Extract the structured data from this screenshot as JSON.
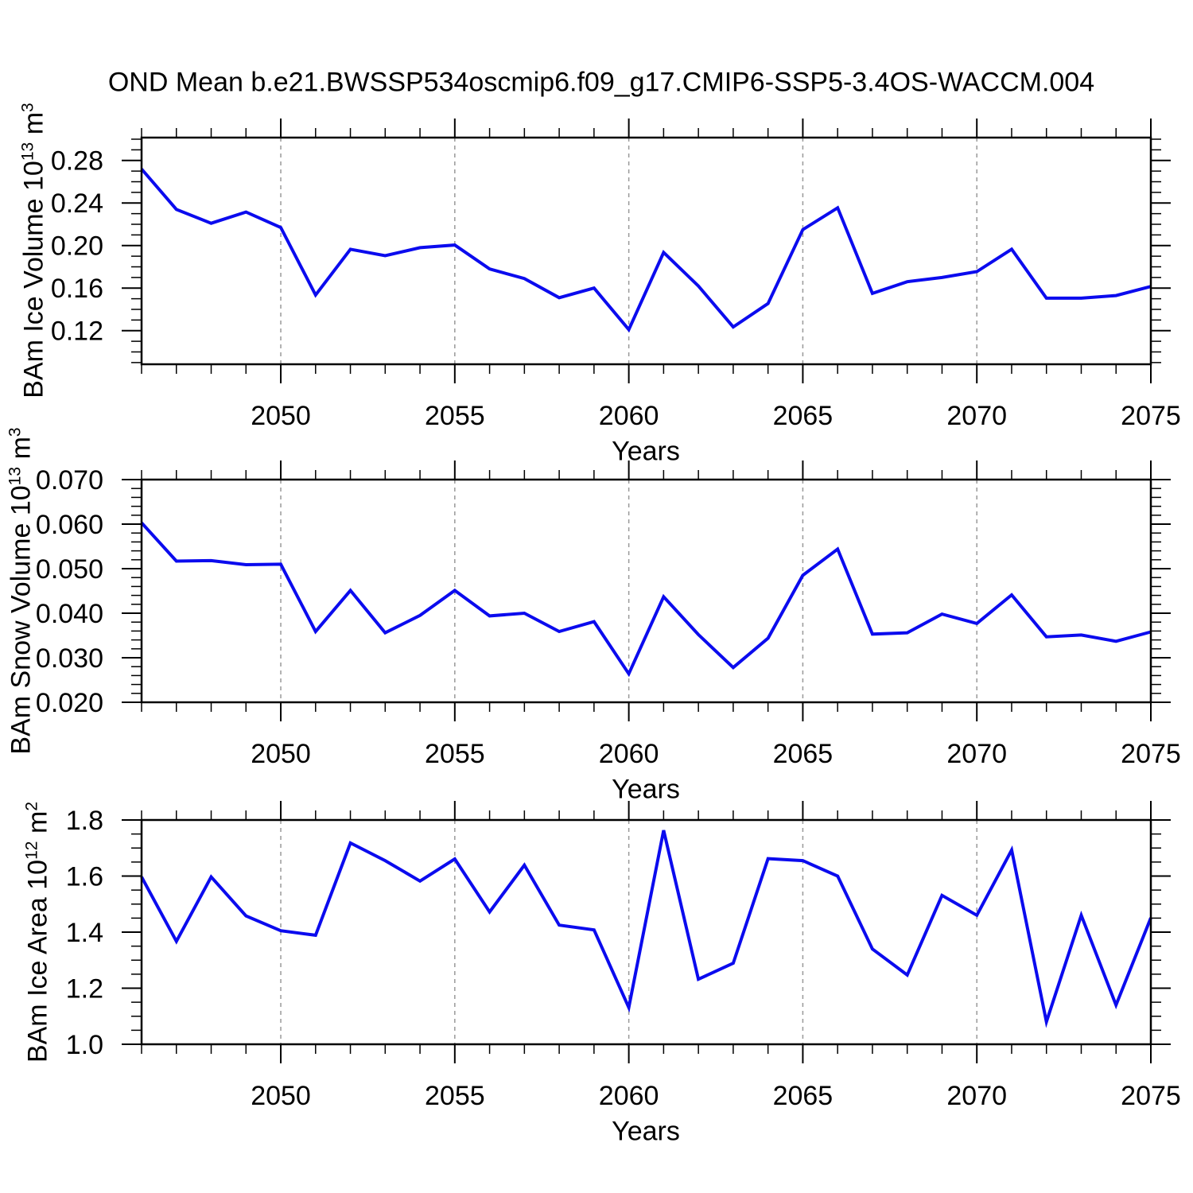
{
  "page": {
    "title": "OND Mean b.e21.BWSSP534oscmip6.f09_g17.CMIP6-SSP5-3.4OS-WACCM.004",
    "background": "#FFFFFF"
  },
  "axis": {
    "xlabel": "Years",
    "text_color": "#000000",
    "axis_color": "#000000",
    "grid_color": "#999999",
    "line_color": "#0B0BEE"
  },
  "chart_data": [
    {
      "type": "line",
      "name": "bam-ice-volume",
      "ylabel_text": "BAm Ice Volume 10^13 m^3",
      "ylabel_parts": [
        [
          "BAm Ice Volume 10",
          0
        ],
        [
          "13",
          1
        ],
        [
          " m",
          0
        ],
        [
          "3",
          1
        ]
      ],
      "xlabel": "Years",
      "legend": "none",
      "grid": "vertical-dashed",
      "xlim": [
        2046,
        2075
      ],
      "ylim": [
        0.0884,
        0.3015
      ],
      "yticks": [
        0.12,
        0.16,
        0.2,
        0.24,
        0.28
      ],
      "ytick_labels": [
        "0.12",
        "0.16",
        "0.20",
        "0.24",
        "0.28"
      ],
      "yminor_step": 0.01,
      "xticks_major": [
        2050,
        2055,
        2060,
        2065,
        2070,
        2075
      ],
      "xtick_labels": [
        "2050",
        "2055",
        "2060",
        "2065",
        "2070",
        "2075"
      ],
      "xminor_step": 1,
      "grid_x": [
        2050,
        2055,
        2060,
        2065,
        2070
      ],
      "x": [
        2046,
        2047,
        2048,
        2049,
        2050,
        2051,
        2052,
        2053,
        2054,
        2055,
        2056,
        2057,
        2058,
        2059,
        2060,
        2061,
        2062,
        2063,
        2064,
        2065,
        2066,
        2067,
        2068,
        2069,
        2070,
        2071,
        2072,
        2073,
        2074,
        2075
      ],
      "values": [
        0.272,
        0.234,
        0.221,
        0.2315,
        0.217,
        0.1535,
        0.1965,
        0.1905,
        0.198,
        0.2005,
        0.178,
        0.169,
        0.151,
        0.16,
        0.121,
        0.1935,
        0.162,
        0.1235,
        0.1455,
        0.215,
        0.2355,
        0.155,
        0.166,
        0.17,
        0.1755,
        0.1965,
        0.1505,
        0.1505,
        0.153,
        0.1615
      ]
    },
    {
      "type": "line",
      "name": "bam-snow-volume",
      "ylabel_text": "BAm Snow Volume 10^13 m^3",
      "ylabel_parts": [
        [
          "BAm Snow Volume 10",
          0
        ],
        [
          "13",
          1
        ],
        [
          " m",
          0
        ],
        [
          "3",
          1
        ]
      ],
      "xlabel": "Years",
      "legend": "none",
      "grid": "vertical-dashed",
      "xlim": [
        2046,
        2075
      ],
      "ylim": [
        0.02,
        0.07
      ],
      "yticks": [
        0.02,
        0.03,
        0.04,
        0.05,
        0.06,
        0.07
      ],
      "ytick_labels": [
        "0.020",
        "0.030",
        "0.040",
        "0.050",
        "0.060",
        "0.070"
      ],
      "yminor_step": 0.002,
      "xticks_major": [
        2050,
        2055,
        2060,
        2065,
        2070,
        2075
      ],
      "xtick_labels": [
        "2050",
        "2055",
        "2060",
        "2065",
        "2070",
        "2075"
      ],
      "xminor_step": 1,
      "grid_x": [
        2050,
        2055,
        2060,
        2065,
        2070
      ],
      "x": [
        2046,
        2047,
        2048,
        2049,
        2050,
        2051,
        2052,
        2053,
        2054,
        2055,
        2056,
        2057,
        2058,
        2059,
        2060,
        2061,
        2062,
        2063,
        2064,
        2065,
        2066,
        2067,
        2068,
        2069,
        2070,
        2071,
        2072,
        2073,
        2074,
        2075
      ],
      "values": [
        0.0603,
        0.0517,
        0.0518,
        0.0509,
        0.051,
        0.0359,
        0.0451,
        0.0356,
        0.0395,
        0.0451,
        0.0394,
        0.04,
        0.0359,
        0.0381,
        0.0264,
        0.0437,
        0.0352,
        0.0278,
        0.0344,
        0.0485,
        0.0544,
        0.0353,
        0.0356,
        0.0398,
        0.0377,
        0.0441,
        0.0347,
        0.0351,
        0.0337,
        0.0358
      ]
    },
    {
      "type": "line",
      "name": "bam-ice-area",
      "ylabel_text": "BAm Ice Area 10^12 m^2",
      "ylabel_parts": [
        [
          "BAm Ice Area 10",
          0
        ],
        [
          "12",
          1
        ],
        [
          " m",
          0
        ],
        [
          "2",
          1
        ]
      ],
      "xlabel": "Years",
      "legend": "none",
      "grid": "vertical-dashed",
      "xlim": [
        2046,
        2075
      ],
      "ylim": [
        1.0,
        1.8
      ],
      "yticks": [
        1.0,
        1.2,
        1.4,
        1.6,
        1.8
      ],
      "ytick_labels": [
        "1.0",
        "1.2",
        "1.4",
        "1.6",
        "1.8"
      ],
      "yminor_step": 0.05,
      "xticks_major": [
        2050,
        2055,
        2060,
        2065,
        2070,
        2075
      ],
      "xtick_labels": [
        "2050",
        "2055",
        "2060",
        "2065",
        "2070",
        "2075"
      ],
      "xminor_step": 1,
      "grid_x": [
        2050,
        2055,
        2060,
        2065,
        2070
      ],
      "x": [
        2046,
        2047,
        2048,
        2049,
        2050,
        2051,
        2052,
        2053,
        2054,
        2055,
        2056,
        2057,
        2058,
        2059,
        2060,
        2061,
        2062,
        2063,
        2064,
        2065,
        2066,
        2067,
        2068,
        2069,
        2070,
        2071,
        2072,
        2073,
        2074,
        2075
      ],
      "values": [
        1.597,
        1.367,
        1.597,
        1.458,
        1.405,
        1.389,
        1.718,
        1.655,
        1.582,
        1.661,
        1.472,
        1.639,
        1.425,
        1.408,
        1.131,
        1.763,
        1.232,
        1.289,
        1.662,
        1.655,
        1.6,
        1.34,
        1.247,
        1.531,
        1.46,
        1.693,
        1.08,
        1.46,
        1.14,
        1.451
      ]
    }
  ]
}
